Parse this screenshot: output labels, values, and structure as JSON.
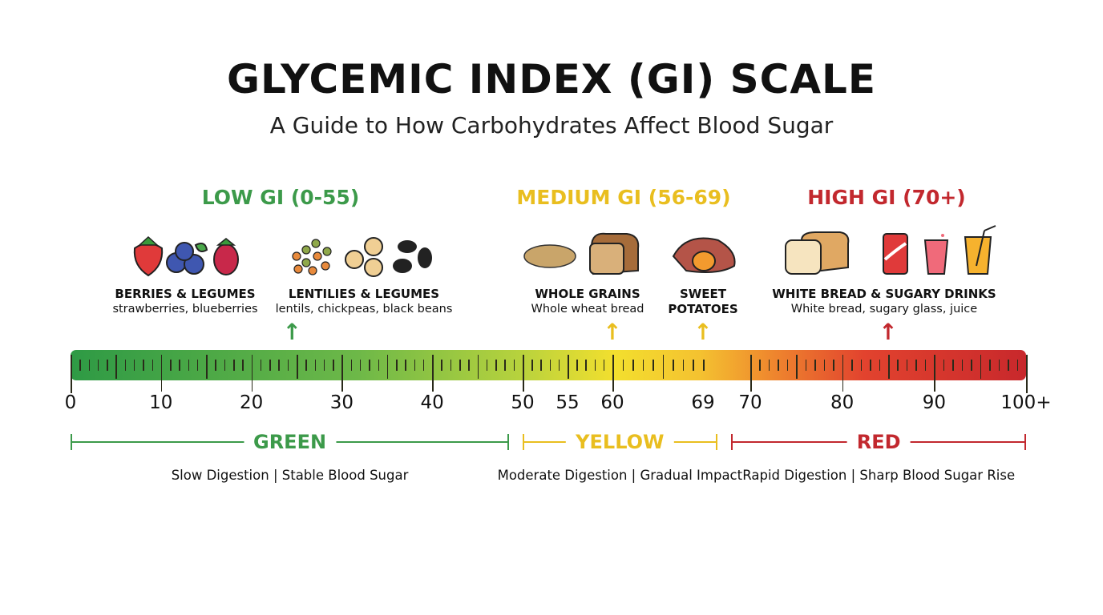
{
  "title": "GLYCEMIC INDEX (GI) SCALE",
  "subtitle": "A Guide to How Carbohydrates Affect Blood Sugar",
  "categories": [
    {
      "label": "LOW GI (0-55)",
      "color": "#3c9a4a"
    },
    {
      "label": "MEDIUM GI (56-69)",
      "color": "#e9be1f"
    },
    {
      "label": "HIGH GI (70+)",
      "color": "#c2282e"
    }
  ],
  "foods": [
    {
      "heading": "BERRIES & LEGUMES",
      "detail": "strawberries, blueberries",
      "icons": [
        "strawberry-icon",
        "blueberries-icon",
        "raspberry-icon"
      ]
    },
    {
      "heading": "LENTILIES & LEGUMES",
      "detail": "lentils, chickpeas, black beans",
      "icons": [
        "lentils-icon",
        "chickpeas-icon",
        "black-beans-icon"
      ],
      "gi": 24.5,
      "arrow_color": "#3c9a4a"
    },
    {
      "heading": "WHOLE GRAINS",
      "detail": "Whole wheat bread",
      "icons": [
        "grains-icon",
        "wheat-bread-icon"
      ],
      "gi": 60,
      "arrow_color": "#e9be1f"
    },
    {
      "heading": "SWEET",
      "detail": "POTATOES",
      "icons": [
        "sweet-potato-icon"
      ],
      "gi": 69,
      "arrow_color": "#e9be1f"
    },
    {
      "heading": "WHITE BREAD & SUGARY DRINKS",
      "detail": "White bread, sugary glass, juice",
      "icons": [
        "white-bread-icon",
        "soda-can-icon",
        "sugary-drink-icon",
        "juice-icon"
      ],
      "gi": 85,
      "arrow_color": "#c2282e"
    }
  ],
  "scale": {
    "tick_labels": [
      "0",
      "10",
      "20",
      "30",
      "40",
      "50",
      "55",
      "60",
      "69",
      "70",
      "80",
      "90",
      "100+"
    ]
  },
  "zones": [
    {
      "label": "GREEN",
      "description": "Slow Digestion | Stable Blood Sugar",
      "color": "#3c9a4a"
    },
    {
      "label": "YELLOW",
      "description": "Moderate Digestion | Gradual Impact",
      "color": "#e9be1f"
    },
    {
      "label": "RED",
      "description": "Rapid Digestion | Sharp Blood Sugar Rise",
      "color": "#c2282e"
    }
  ]
}
